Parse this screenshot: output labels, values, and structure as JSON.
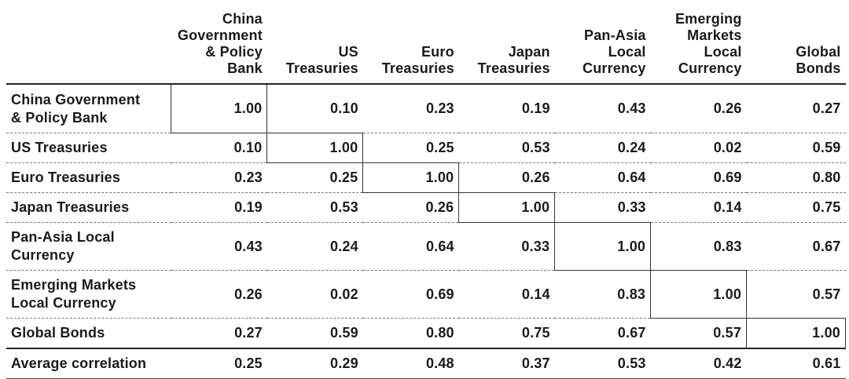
{
  "chart_data": {
    "type": "table",
    "columns": [
      [
        "China",
        "Government",
        "& Policy",
        "Bank"
      ],
      [
        "US",
        "Treasuries"
      ],
      [
        "Euro",
        "Treasuries"
      ],
      [
        "Japan",
        "Treasuries"
      ],
      [
        "Pan-Asia",
        "Local",
        "Currency"
      ],
      [
        "Emerging",
        "Markets",
        "Local",
        "Currency"
      ],
      [
        "Global",
        "Bonds"
      ]
    ],
    "rows": [
      {
        "label": [
          "China Government",
          "& Policy Bank"
        ],
        "values": [
          "1.00",
          "0.10",
          "0.23",
          "0.19",
          "0.43",
          "0.26",
          "0.27"
        ]
      },
      {
        "label": [
          "US Treasuries"
        ],
        "values": [
          "0.10",
          "1.00",
          "0.25",
          "0.53",
          "0.24",
          "0.02",
          "0.59"
        ]
      },
      {
        "label": [
          "Euro Treasuries"
        ],
        "values": [
          "0.23",
          "0.25",
          "1.00",
          "0.26",
          "0.64",
          "0.69",
          "0.80"
        ]
      },
      {
        "label": [
          "Japan Treasuries"
        ],
        "values": [
          "0.19",
          "0.53",
          "0.26",
          "1.00",
          "0.33",
          "0.14",
          "0.75"
        ]
      },
      {
        "label": [
          "Pan-Asia Local",
          "Currency"
        ],
        "values": [
          "0.43",
          "0.24",
          "0.64",
          "0.33",
          "1.00",
          "0.83",
          "0.67"
        ]
      },
      {
        "label": [
          "Emerging Markets",
          "Local Currency"
        ],
        "values": [
          "0.26",
          "0.02",
          "0.69",
          "0.14",
          "0.83",
          "1.00",
          "0.57"
        ]
      },
      {
        "label": [
          "Global Bonds"
        ],
        "values": [
          "0.27",
          "0.59",
          "0.80",
          "0.75",
          "0.67",
          "0.57",
          "1.00"
        ]
      },
      {
        "label": [
          "Average correlation"
        ],
        "values": [
          "0.25",
          "0.29",
          "0.48",
          "0.37",
          "0.53",
          "0.42",
          "0.61"
        ]
      }
    ]
  }
}
